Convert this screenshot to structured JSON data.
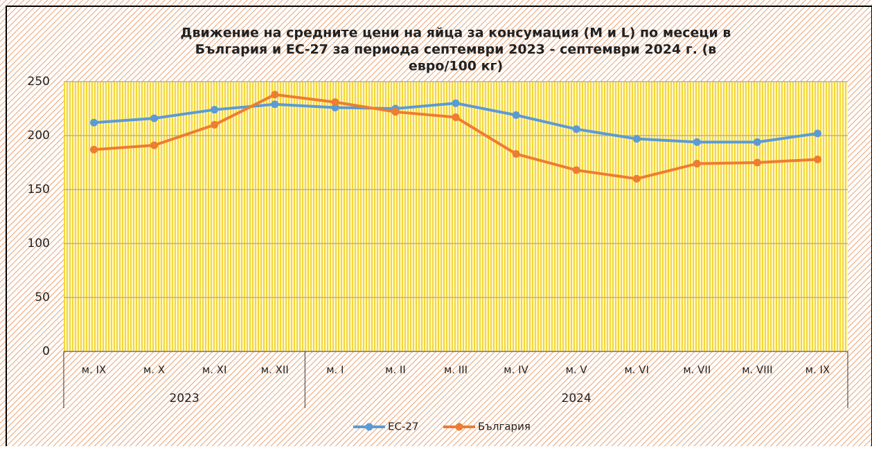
{
  "chart_data": {
    "type": "line",
    "title": [
      "Движение на средните цени на яйца за консумация (M и L) по месеци в",
      "България и ЕС-27 за периода септември 2023 - септември 2024 г. (в",
      "евро/100 кг)"
    ],
    "categories": [
      "м. IX",
      "м. X",
      "м. XI",
      "м. XII",
      "м. I",
      "м. II",
      "м. III",
      "м. IV",
      "м. V",
      "м. VI",
      "м. VII",
      "м. VIII",
      "м. IX"
    ],
    "groups": [
      {
        "label": "2023",
        "count": 4
      },
      {
        "label": "2024",
        "count": 9
      }
    ],
    "series": [
      {
        "name": "ЕС-27",
        "color": "#5b9bd5",
        "values": [
          212,
          216,
          224,
          229,
          226,
          225,
          230,
          219,
          206,
          197,
          194,
          194,
          202
        ]
      },
      {
        "name": "България",
        "color": "#ed7d31",
        "values": [
          187,
          191,
          210,
          238,
          231,
          222,
          217,
          183,
          168,
          160,
          174,
          175,
          178
        ]
      }
    ],
    "ylim": [
      0,
      250
    ],
    "yticks": [
      0,
      50,
      100,
      150,
      200,
      250
    ],
    "grid": true,
    "legend": "bottom"
  }
}
